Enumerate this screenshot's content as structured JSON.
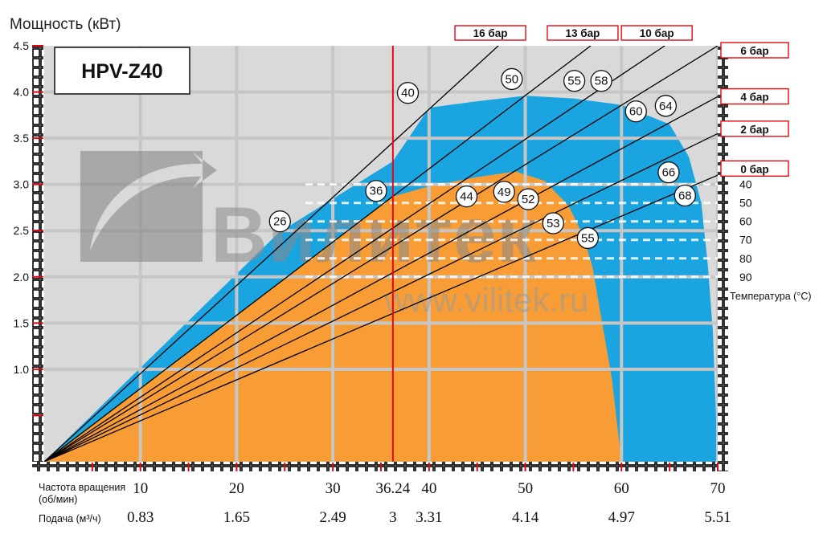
{
  "chart_data": {
    "type": "area",
    "title": "",
    "model": "HPV-Z40",
    "ylabel": "Мощность (кВт)",
    "ylim": [
      0,
      4.5
    ],
    "yticks": [
      "1.0",
      "1.5",
      "2.0",
      "2.5",
      "3.0",
      "3.5",
      "4.0",
      "4.5"
    ],
    "xlim": [
      0,
      70
    ],
    "xlabel_rpm": "Частота вращения",
    "xlabel_rpm_unit": "(об/мин)",
    "xticks": [
      {
        "x": 10,
        "label": "10"
      },
      {
        "x": 20,
        "label": "20"
      },
      {
        "x": 30,
        "label": "30"
      },
      {
        "x": 36.24,
        "label": "36.24"
      },
      {
        "x": 40,
        "label": "40"
      },
      {
        "x": 50,
        "label": "50"
      },
      {
        "x": 60,
        "label": "60"
      },
      {
        "x": 70,
        "label": "70"
      }
    ],
    "xlabel_flow": "Подача (м³/ч)",
    "flow_ticks": [
      {
        "x": 10,
        "label": "0.83"
      },
      {
        "x": 20,
        "label": "1.65"
      },
      {
        "x": 30,
        "label": "2.49"
      },
      {
        "x": 36.24,
        "label": "3"
      },
      {
        "x": 40,
        "label": "3.31"
      },
      {
        "x": 50,
        "label": "4.14"
      },
      {
        "x": 60,
        "label": "4.97"
      },
      {
        "x": 70,
        "label": "5.51"
      }
    ],
    "marker_x": 36.24,
    "areas": [
      {
        "key": "extended",
        "color": "#1aa4e0",
        "points": [
          [
            0,
            0
          ],
          [
            24.4,
            2.48
          ],
          [
            36.24,
            3.25
          ],
          [
            40,
            3.83
          ],
          [
            45,
            3.9
          ],
          [
            50,
            3.96
          ],
          [
            55,
            3.93
          ],
          [
            60,
            3.86
          ],
          [
            65,
            3.65
          ],
          [
            67,
            3.3
          ],
          [
            68.3,
            2.8
          ],
          [
            69,
            2.1
          ],
          [
            69.5,
            1.4
          ],
          [
            70,
            0
          ]
        ]
      },
      {
        "key": "normal",
        "color": "#f89d35",
        "points": [
          [
            0,
            0
          ],
          [
            36.24,
            2.87
          ],
          [
            40,
            2.98
          ],
          [
            45,
            3.08
          ],
          [
            49,
            3.14
          ],
          [
            52,
            3.04
          ],
          [
            54.5,
            2.77
          ],
          [
            56,
            2.45
          ],
          [
            57,
            2.1
          ],
          [
            58,
            1.5
          ],
          [
            59,
            0.9
          ],
          [
            60,
            0
          ]
        ]
      }
    ],
    "pressure_lines": [
      {
        "label": "16 бар",
        "end": [
          47.2,
          4.5
        ]
      },
      {
        "label": "13 бар",
        "end": [
          56.8,
          4.5
        ]
      },
      {
        "label": "10 бар",
        "end": [
          64.5,
          4.5
        ]
      },
      {
        "label": "6 бар",
        "end": [
          70,
          4.5
        ]
      },
      {
        "label": "4 бар",
        "end": [
          70,
          3.95
        ]
      },
      {
        "label": "2 бар",
        "end": [
          70,
          3.55
        ]
      },
      {
        "label": "0 бар",
        "end": [
          70,
          3.1
        ]
      }
    ],
    "pressure_tags": [
      {
        "label": "16 бар",
        "x": 47.2
      },
      {
        "label": "13 бар",
        "x": 56.8
      },
      {
        "label": "10 бар",
        "x": 64.5
      },
      {
        "label": "6 бар",
        "y": 4.5
      },
      {
        "label": "4 бар",
        "y": 4.0
      },
      {
        "label": "2 бар",
        "y": 3.65
      },
      {
        "label": "0 бар",
        "y": 3.22
      }
    ],
    "temperature_label": "Температура (°C)",
    "temperature_ticks": [
      {
        "label": "40",
        "y": 3.0
      },
      {
        "label": "50",
        "y": 2.8
      },
      {
        "label": "60",
        "y": 2.6
      },
      {
        "label": "70",
        "y": 2.4
      },
      {
        "label": "80",
        "y": 2.2
      },
      {
        "label": "90",
        "y": 2.0
      }
    ],
    "temperature_labels": [
      {
        "text": "26",
        "x": 24.5,
        "y": 2.6
      },
      {
        "text": "36",
        "x": 34.5,
        "y": 2.93
      },
      {
        "text": "40",
        "x": 37.8,
        "y": 3.99
      },
      {
        "text": "44",
        "x": 43.9,
        "y": 2.87
      },
      {
        "text": "49",
        "x": 47.8,
        "y": 2.92
      },
      {
        "text": "50",
        "x": 48.6,
        "y": 4.14
      },
      {
        "text": "52",
        "x": 50.3,
        "y": 2.84
      },
      {
        "text": "53",
        "x": 52.9,
        "y": 2.58
      },
      {
        "text": "55",
        "x": 55.1,
        "y": 4.12
      },
      {
        "text": "58",
        "x": 57.9,
        "y": 4.12
      },
      {
        "text": "55",
        "x": 56.5,
        "y": 2.42
      },
      {
        "text": "60",
        "x": 61.5,
        "y": 3.79
      },
      {
        "text": "64",
        "x": 64.6,
        "y": 3.85
      },
      {
        "text": "66",
        "x": 64.9,
        "y": 3.13
      },
      {
        "text": "68",
        "x": 66.6,
        "y": 2.88
      }
    ],
    "grid": true,
    "watermark": {
      "brand": "Вилитек",
      "url": "www.vilitek.ru"
    }
  }
}
